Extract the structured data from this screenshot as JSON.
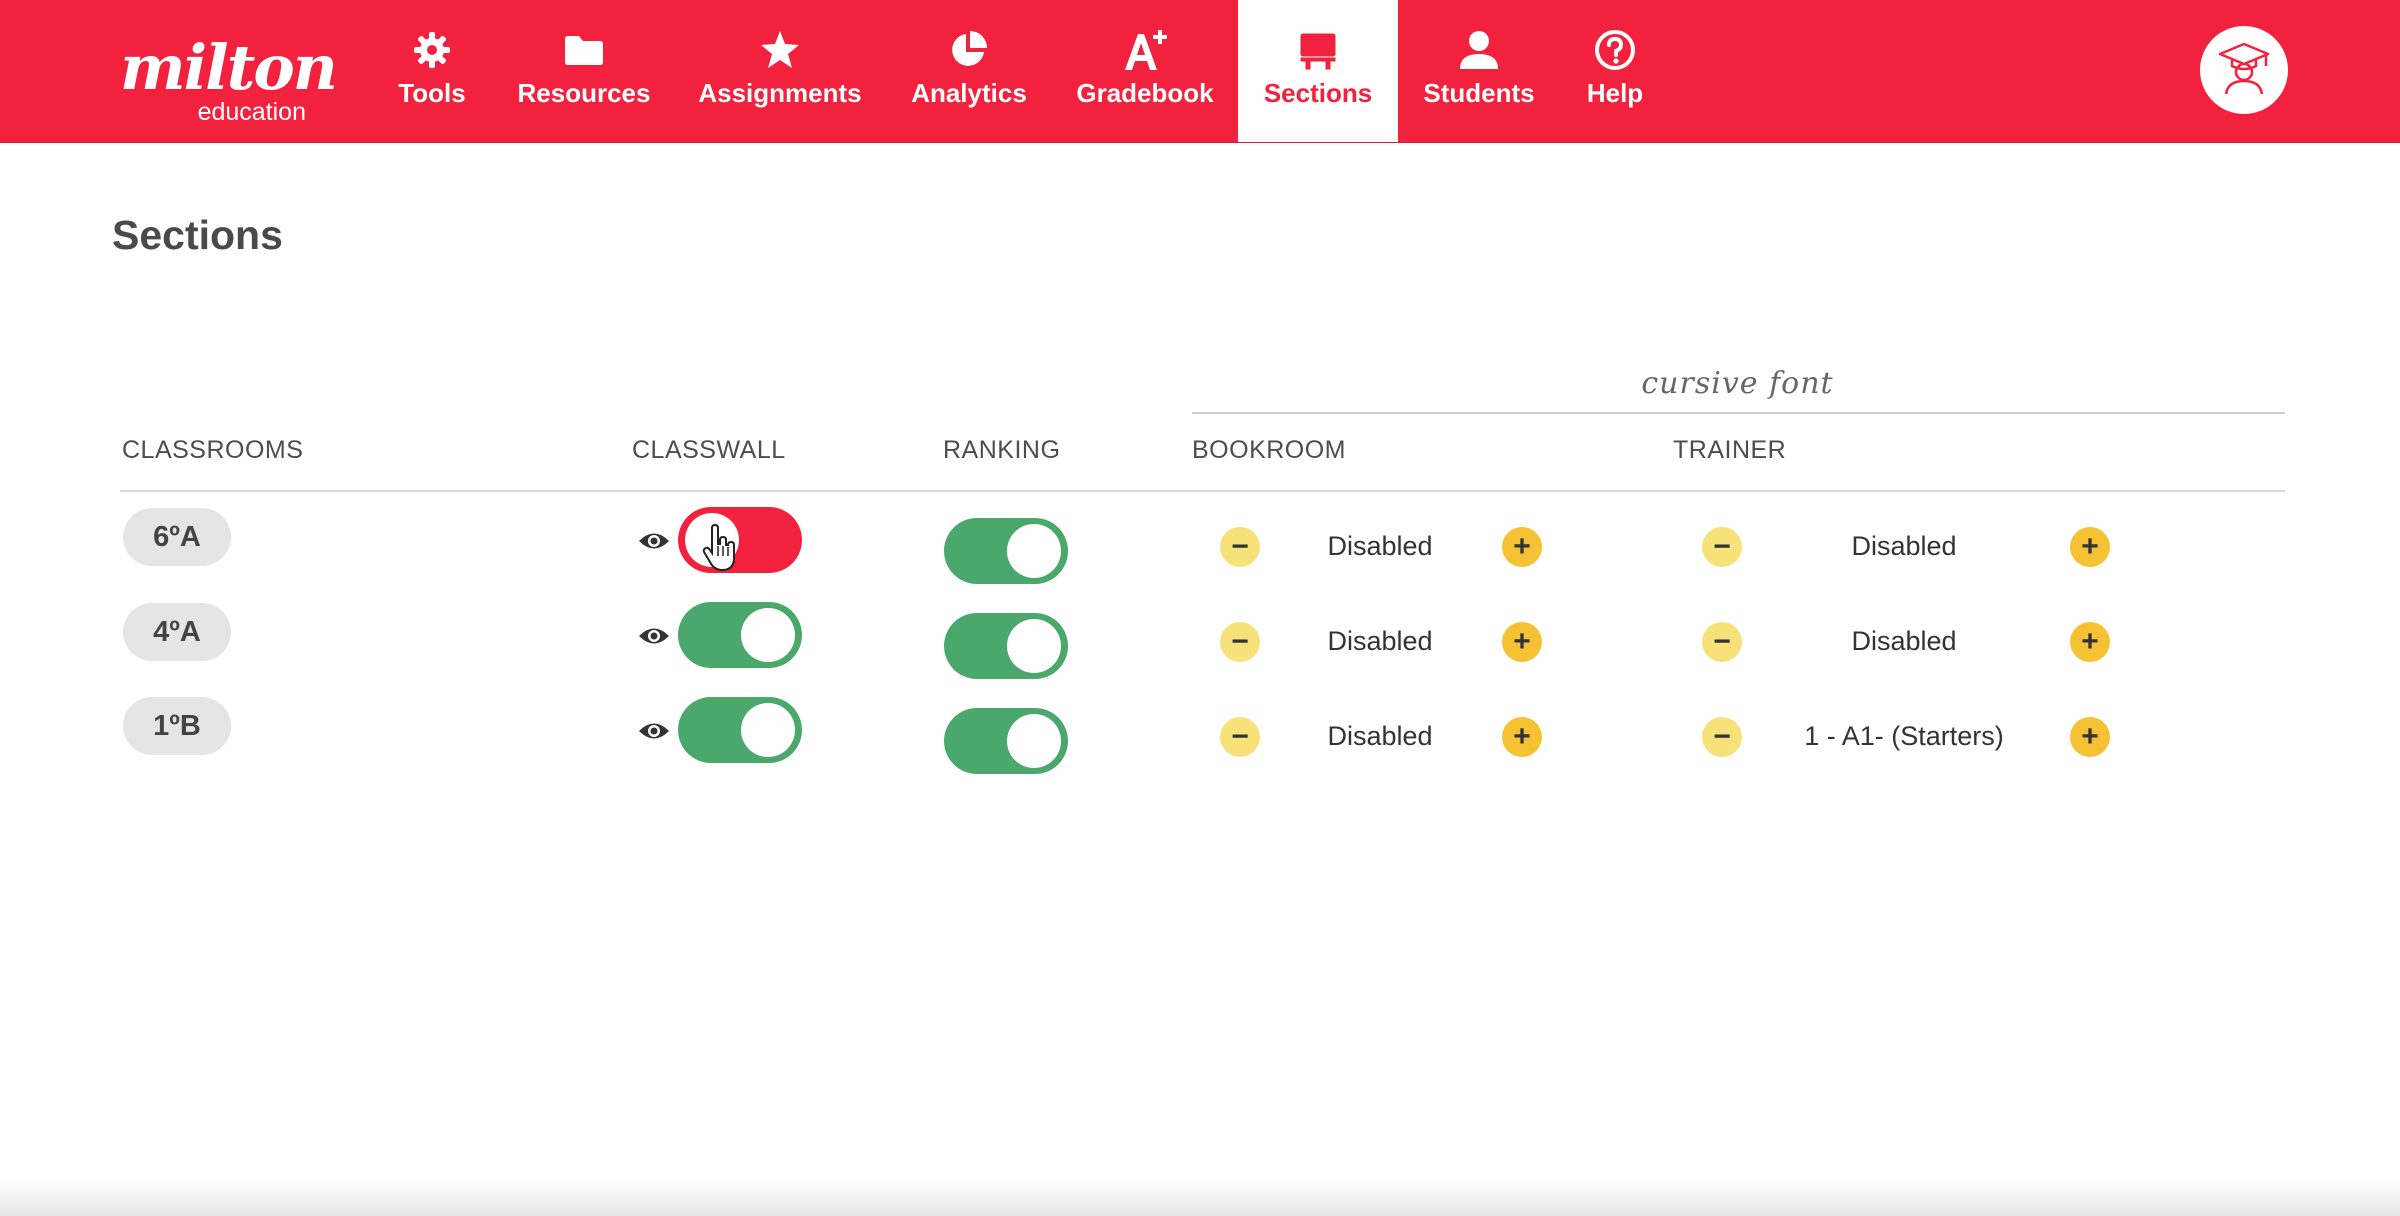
{
  "brand": {
    "logo_main": "milton",
    "logo_sub": "education"
  },
  "nav": {
    "items": [
      {
        "label": "Tools",
        "icon": "gear-icon"
      },
      {
        "label": "Resources",
        "icon": "folder-icon"
      },
      {
        "label": "Assignments",
        "icon": "star-icon"
      },
      {
        "label": "Analytics",
        "icon": "pie-chart-icon"
      },
      {
        "label": "Gradebook",
        "icon": "grade-a-plus-icon"
      },
      {
        "label": "Sections",
        "icon": "presentation-board-icon",
        "active": true
      },
      {
        "label": "Students",
        "icon": "user-icon"
      },
      {
        "label": "Help",
        "icon": "question-circle-icon"
      }
    ],
    "avatar_icon": "graduate-avatar-icon"
  },
  "colors": {
    "brand_red": "#f2213e",
    "toggle_on": "#4ba86c",
    "minus_btn": "#f7e27a",
    "plus_btn": "#f5c233"
  },
  "page": {
    "title": "Sections"
  },
  "table": {
    "group_label": "cursive font",
    "headers": {
      "classrooms": "CLASSROOMS",
      "classwall": "CLASSWALL",
      "ranking": "RANKING",
      "bookroom": "BOOKROOM",
      "trainer": "TRAINER"
    },
    "rows": [
      {
        "classroom": "6ºA",
        "classwall": "off",
        "ranking": "on",
        "bookroom": "Disabled",
        "trainer": "Disabled"
      },
      {
        "classroom": "4ºA",
        "classwall": "on",
        "ranking": "on",
        "bookroom": "Disabled",
        "trainer": "Disabled"
      },
      {
        "classroom": "1ºB",
        "classwall": "on",
        "ranking": "on",
        "bookroom": "Disabled",
        "trainer": "1 - A1- (Starters)"
      }
    ],
    "minus_symbol": "−",
    "plus_symbol": "+"
  }
}
